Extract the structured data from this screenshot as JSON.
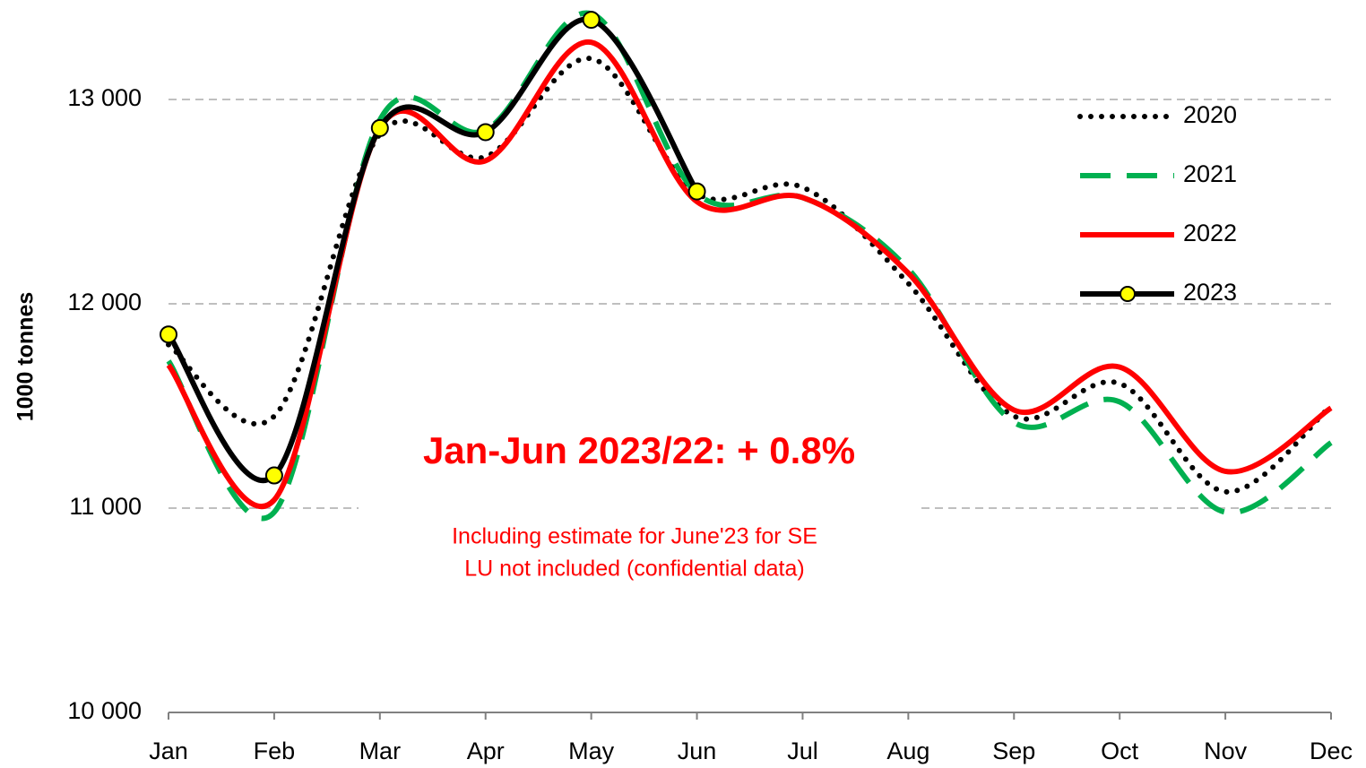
{
  "chart_data": {
    "type": "line",
    "y_label": "1000 tonnes",
    "categories": [
      "Jan",
      "Feb",
      "Mar",
      "Apr",
      "May",
      "Jun",
      "Jul",
      "Aug",
      "Sep",
      "Oct",
      "Nov",
      "Dec"
    ],
    "series": [
      {
        "name": "2020",
        "color": "#000000",
        "style": "dotted",
        "marker": false,
        "values": [
          11800,
          11450,
          12830,
          12720,
          13200,
          12540,
          12570,
          12100,
          11450,
          11610,
          11080,
          11500
        ]
      },
      {
        "name": "2021",
        "color": "#00b050",
        "style": "dashed",
        "marker": false,
        "values": [
          11720,
          10980,
          12900,
          12850,
          13420,
          12540,
          12520,
          12170,
          11420,
          11520,
          10980,
          11320
        ]
      },
      {
        "name": "2022",
        "color": "#ff0000",
        "style": "solid",
        "marker": false,
        "values": [
          11700,
          11040,
          12860,
          12700,
          13280,
          12500,
          12520,
          12150,
          11480,
          11690,
          11180,
          11490
        ]
      },
      {
        "name": "2023",
        "color": "#000000",
        "style": "solid",
        "marker": true,
        "marker_color": "#ffff00",
        "values": [
          11850,
          11160,
          12860,
          12840,
          13390,
          12550,
          null,
          null,
          null,
          null,
          null,
          null
        ]
      }
    ],
    "ylim": [
      10000,
      13300
    ],
    "yticks": [
      {
        "value": 10000,
        "label": "10 000"
      },
      {
        "value": 11000,
        "label": "11 000"
      },
      {
        "value": 12000,
        "label": "12 000"
      },
      {
        "value": 13000,
        "label": "13 000"
      }
    ],
    "grid": true,
    "legend": "upper right",
    "annotations": [
      "Jan-Jun 2023/22: + 0.8%",
      "Including estimate for June'23 for SE",
      "LU not included (confidential data)"
    ]
  }
}
